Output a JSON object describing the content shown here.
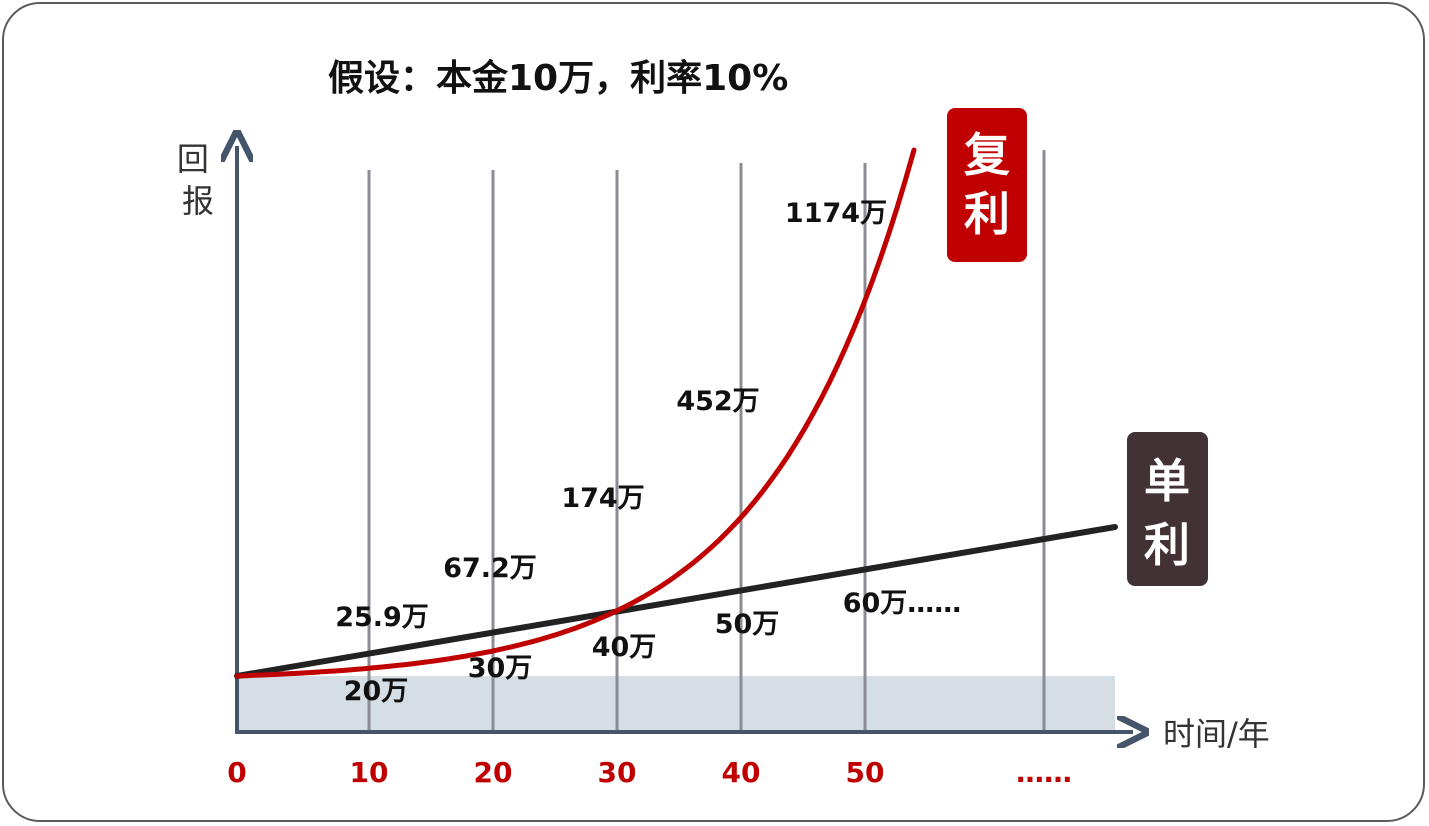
{
  "chart_data": {
    "type": "line",
    "title": "假设：本金10万，利率10%",
    "xlabel": "时间/年",
    "ylabel": "回报",
    "x_ticks": [
      "0",
      "10",
      "20",
      "30",
      "40",
      "50",
      "……"
    ],
    "series": [
      {
        "name": "复利",
        "color": "#c00000",
        "labels": [
          "25.9万",
          "67.2万",
          "174万",
          "452万",
          "1174万"
        ]
      },
      {
        "name": "单利",
        "color": "#222222",
        "labels": [
          "20万",
          "30万",
          "40万",
          "50万",
          "60万……"
        ]
      }
    ],
    "principal_band": true,
    "colors": {
      "compound": "#c00000",
      "simple": "#222222",
      "simple_badge": "#433235",
      "axis": "#44546a",
      "gridline": "#8c8c94",
      "band": "#d5dde5"
    }
  }
}
